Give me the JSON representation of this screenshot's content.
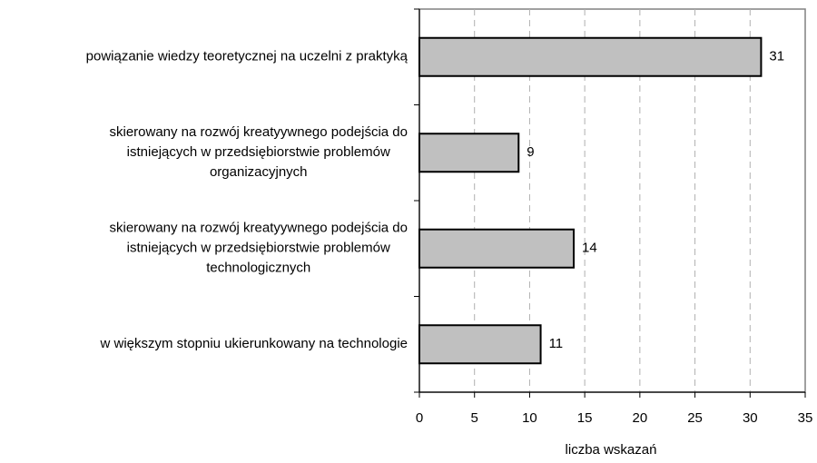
{
  "chart_data": {
    "type": "hbar",
    "categories": [
      [
        "powiązanie wiedzy teoretycznej na uczelni z praktyką"
      ],
      [
        "skierowany na rozwój kreatyywnego podejścia do",
        "istniejących w przedsiębiorstwie problemów",
        "organizacyjnych"
      ],
      [
        "skierowany na rozwój kreatyywnego podejścia do",
        "istniejących w przedsiębiorstwie problemów",
        "technologicznych"
      ],
      [
        "w większym stopniu ukierunkowany na technologie"
      ]
    ],
    "values": [
      31,
      9,
      14,
      11
    ],
    "color": "#c0c0c0",
    "xlim": [
      0,
      35
    ],
    "xticks": [
      0,
      5,
      10,
      15,
      20,
      25,
      30,
      35
    ],
    "xlabel": "liczba wskazań",
    "grid": true
  }
}
